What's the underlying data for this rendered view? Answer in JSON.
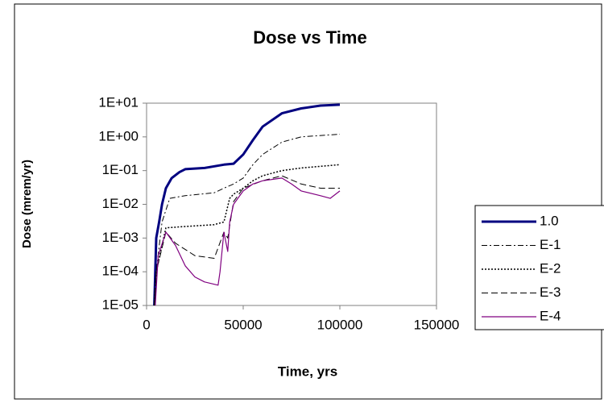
{
  "chart_data": {
    "type": "line",
    "title": "Dose vs Time",
    "x_label": "Time, yrs",
    "y_label": "Dose (mrem/yr)",
    "log_y": true,
    "xlim": [
      0,
      150000
    ],
    "xticks": [
      0,
      50000,
      100000,
      150000
    ],
    "ylim": [
      1e-05,
      10
    ],
    "yticks": [
      {
        "value": 1e-05,
        "label": "1E-05"
      },
      {
        "value": 0.0001,
        "label": "1E-04"
      },
      {
        "value": 0.001,
        "label": "1E-03"
      },
      {
        "value": 0.01,
        "label": "1E-02"
      },
      {
        "value": 0.1,
        "label": "1E-01"
      },
      {
        "value": 1,
        "label": "1E+00"
      },
      {
        "value": 10,
        "label": "1E+01"
      }
    ],
    "legend": "right",
    "series": [
      {
        "name": "1.0",
        "color": "#000080",
        "width": 3,
        "dash": "none",
        "x": [
          4000,
          5000,
          6500,
          8000,
          10000,
          13000,
          17000,
          20000,
          30000,
          40000,
          45000,
          50000,
          55000,
          60000,
          70000,
          80000,
          90000,
          100000
        ],
        "values": [
          1e-05,
          0.001,
          0.003,
          0.01,
          0.03,
          0.06,
          0.09,
          0.11,
          0.12,
          0.15,
          0.16,
          0.3,
          0.8,
          2,
          5,
          7,
          8.5,
          9
        ]
      },
      {
        "name": "E-1",
        "color": "#000000",
        "width": 1,
        "dash": "7,3,2,3",
        "x": [
          4000,
          5000,
          8000,
          12000,
          20000,
          35000,
          40000,
          45000,
          50000,
          55000,
          60000,
          70000,
          80000,
          100000
        ],
        "values": [
          1e-05,
          0.0001,
          0.003,
          0.015,
          0.018,
          0.022,
          0.03,
          0.04,
          0.06,
          0.15,
          0.3,
          0.7,
          1.0,
          1.2
        ]
      },
      {
        "name": "E-2",
        "color": "#000000",
        "width": 1.5,
        "dash": "2,2",
        "x": [
          4000,
          5000,
          10000,
          20000,
          35000,
          40000,
          43000,
          45000,
          50000,
          55000,
          60000,
          70000,
          80000,
          100000
        ],
        "values": [
          1e-05,
          0.0001,
          0.002,
          0.0022,
          0.0025,
          0.003,
          0.015,
          0.02,
          0.03,
          0.05,
          0.07,
          0.1,
          0.12,
          0.15
        ]
      },
      {
        "name": "E-3",
        "color": "#000000",
        "width": 1,
        "dash": "8,4",
        "x": [
          4000,
          5000,
          10000,
          15000,
          25000,
          35000,
          40000,
          42000,
          45000,
          50000,
          60000,
          70000,
          80000,
          90000,
          100000
        ],
        "values": [
          1e-05,
          0.0001,
          0.0015,
          0.0007,
          0.0003,
          0.00025,
          0.0015,
          0.001,
          0.012,
          0.03,
          0.05,
          0.07,
          0.04,
          0.03,
          0.03
        ]
      },
      {
        "name": "E-4",
        "color": "#800080",
        "width": 1.2,
        "dash": "none",
        "x": [
          4500,
          6000,
          10000,
          15000,
          20000,
          25000,
          30000,
          37000,
          38000,
          40000,
          42000,
          43000,
          45000,
          50000,
          55000,
          60000,
          70000,
          75000,
          80000,
          90000,
          95000,
          100000
        ],
        "values": [
          1e-05,
          0.0003,
          0.0015,
          0.0006,
          0.00015,
          7e-05,
          5e-05,
          4e-05,
          0.0001,
          0.0015,
          0.0004,
          0.003,
          0.01,
          0.025,
          0.04,
          0.05,
          0.06,
          0.04,
          0.025,
          0.018,
          0.015,
          0.025
        ]
      }
    ]
  }
}
